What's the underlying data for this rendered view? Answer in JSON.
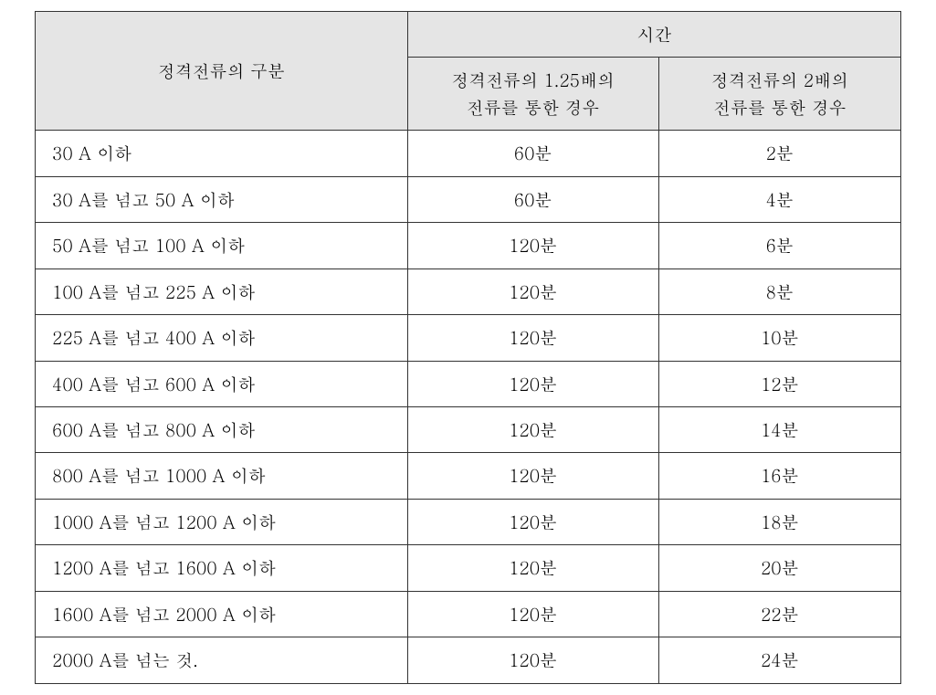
{
  "table": {
    "type": "table",
    "header": {
      "rowLabel": "정격전류의 구분",
      "timeGroup": "시간",
      "col125": "정격전류의 1.25배의\n전류를 통한 경우",
      "col2x": "정격전류의 2배의\n전류를 통한 경우"
    },
    "columns": [
      "category",
      "at_1_25x",
      "at_2x"
    ],
    "column_align": [
      "left",
      "center",
      "center"
    ],
    "header_bg": "#e5e5e5",
    "border_color": "#333333",
    "font_size_pt": 14,
    "rows": [
      {
        "category": "30 A 이하",
        "at_1_25x": "60분",
        "at_2x": "2분"
      },
      {
        "category": "30 A를 넘고 50 A 이하",
        "at_1_25x": "60분",
        "at_2x": "4분"
      },
      {
        "category": "50 A를 넘고 100 A 이하",
        "at_1_25x": "120분",
        "at_2x": "6분"
      },
      {
        "category": "100 A를 넘고 225 A 이하",
        "at_1_25x": "120분",
        "at_2x": "8분"
      },
      {
        "category": "225 A를 넘고 400 A 이하",
        "at_1_25x": "120분",
        "at_2x": "10분"
      },
      {
        "category": "400 A를 넘고 600 A 이하",
        "at_1_25x": "120분",
        "at_2x": "12분"
      },
      {
        "category": "600 A를 넘고 800 A 이하",
        "at_1_25x": "120분",
        "at_2x": "14분"
      },
      {
        "category": "800 A를 넘고 1000 A 이하",
        "at_1_25x": "120분",
        "at_2x": "16분"
      },
      {
        "category": "1000 A를 넘고 1200 A 이하",
        "at_1_25x": "120분",
        "at_2x": "18분"
      },
      {
        "category": "1200 A를 넘고 1600 A 이하",
        "at_1_25x": "120분",
        "at_2x": "20분"
      },
      {
        "category": "1600 A를 넘고 2000 A 이하",
        "at_1_25x": "120분",
        "at_2x": "22분"
      },
      {
        "category": "2000 A를 넘는 것.",
        "at_1_25x": "120분",
        "at_2x": "24분"
      }
    ]
  }
}
